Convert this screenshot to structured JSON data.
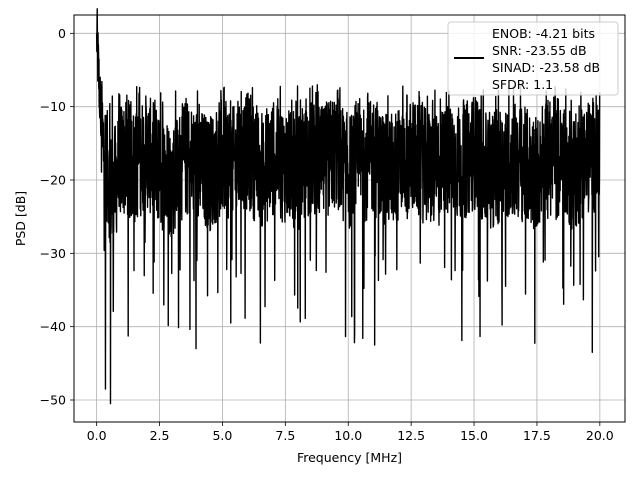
{
  "chart_data": {
    "type": "line",
    "title": "",
    "xlabel": "Frequency [MHz]",
    "ylabel": "PSD [dB]",
    "xlim": [
      -0.9,
      21.0
    ],
    "ylim": [
      -53.0,
      2.5
    ],
    "xticks": [
      0.0,
      2.5,
      5.0,
      7.5,
      10.0,
      12.5,
      15.0,
      17.5,
      20.0
    ],
    "xtick_labels": [
      "0.0",
      "2.5",
      "5.0",
      "7.5",
      "10.0",
      "12.5",
      "15.0",
      "17.5",
      "20.0"
    ],
    "yticks": [
      0,
      -10,
      -20,
      -30,
      -40,
      -50
    ],
    "ytick_labels": [
      "0",
      "−10",
      "−20",
      "−30",
      "−40",
      "−50"
    ],
    "grid": true,
    "legend_position": "top-right",
    "legend_entries": [
      "ENOB: -4.21 bits",
      "SNR: -23.55 dB",
      "SINAD: -23.58 dB",
      "SFDR: 1.1"
    ],
    "series": [
      {
        "color": "#000000",
        "x_range": [
          0.0,
          20.0
        ],
        "x": [
          0.0,
          0.2,
          0.4,
          0.6,
          1.0,
          1.5,
          2.0,
          2.5,
          3.0,
          3.5,
          4.0,
          4.5,
          5.0,
          5.5,
          6.0,
          6.5,
          7.0,
          7.5,
          8.0,
          8.5,
          9.0,
          9.5,
          10.0,
          10.5,
          11.0,
          11.5,
          12.0,
          12.5,
          13.0,
          13.5,
          14.0,
          14.5,
          15.0,
          15.5,
          16.0,
          16.5,
          17.0,
          17.5,
          18.0,
          18.5,
          19.0,
          19.5,
          20.0
        ],
        "y": [
          0,
          -14,
          -18,
          -22,
          -17,
          -18,
          -16,
          -19,
          -20,
          -17,
          -18,
          -19,
          -17,
          -18,
          -16,
          -19,
          -17,
          -18,
          -19,
          -17,
          -18,
          -16,
          -19,
          -18,
          -17,
          -19,
          -18,
          -17,
          -18,
          -19,
          -17,
          -18,
          -16,
          -19,
          -18,
          -17,
          -18,
          -19,
          -17,
          -18,
          -19,
          -17,
          -16
        ]
      }
    ],
    "notable_points": [
      {
        "x": 0.0,
        "y": 0.0
      },
      {
        "x": 0.35,
        "y": -48.5
      },
      {
        "x": 0.55,
        "y": -50.5
      },
      {
        "x": 3.95,
        "y": -43.0
      },
      {
        "x": 11.05,
        "y": -42.5
      },
      {
        "x": 19.7,
        "y": -43.5
      }
    ]
  }
}
